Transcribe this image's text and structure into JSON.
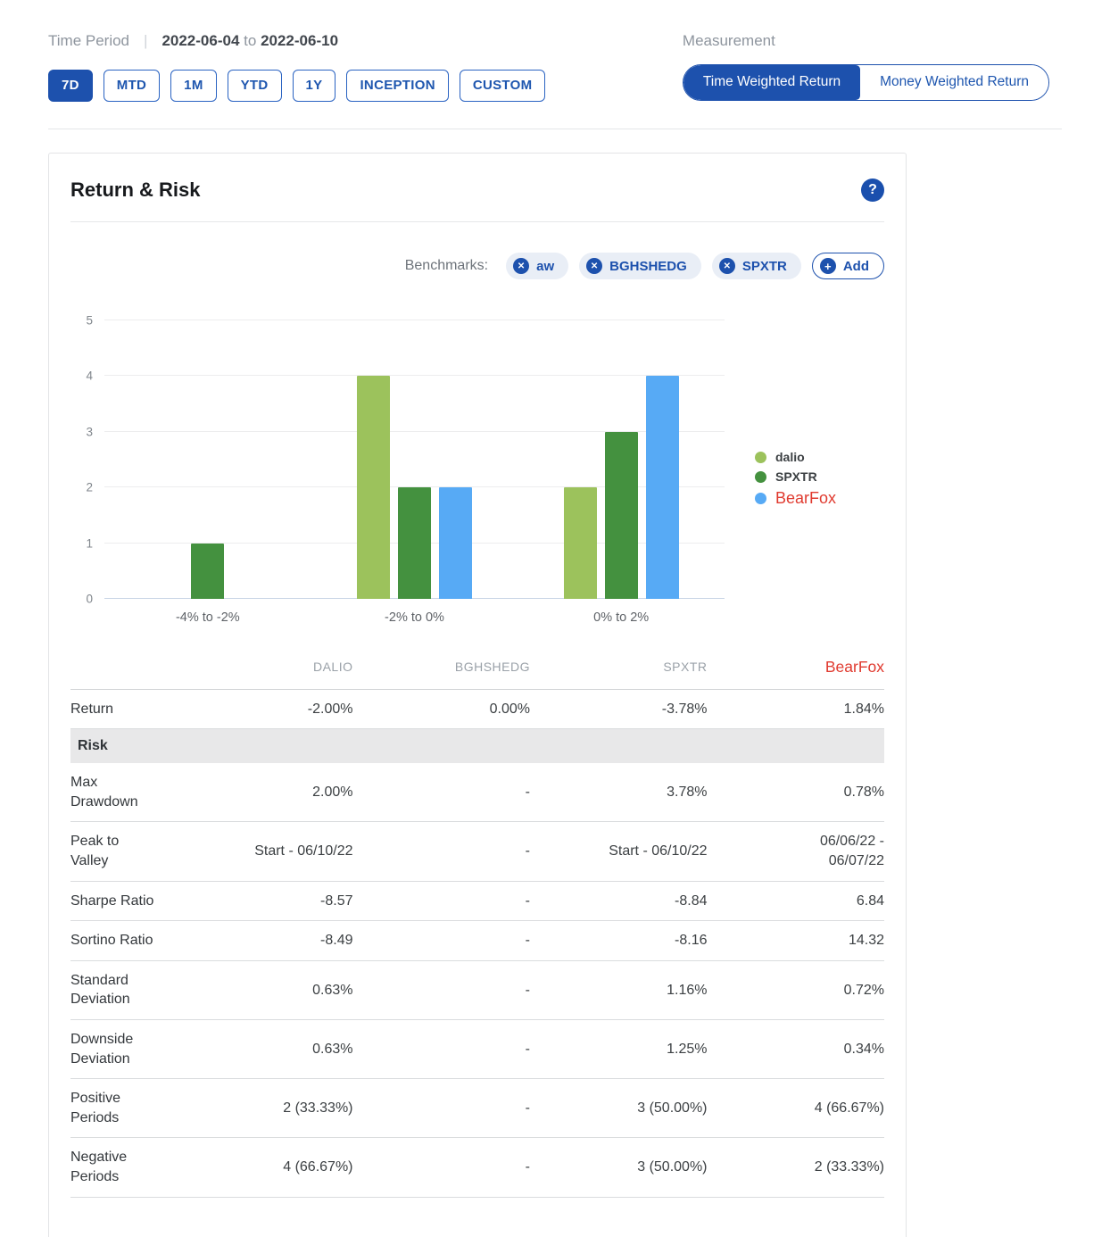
{
  "header": {
    "time_period_label": "Time Period",
    "date_start": "2022-06-04",
    "date_to": "to",
    "date_end": "2022-06-10",
    "period_buttons": [
      {
        "label": "7D",
        "active": true
      },
      {
        "label": "MTD",
        "active": false
      },
      {
        "label": "1M",
        "active": false
      },
      {
        "label": "YTD",
        "active": false
      },
      {
        "label": "1Y",
        "active": false
      },
      {
        "label": "INCEPTION",
        "active": false
      },
      {
        "label": "CUSTOM",
        "active": false
      }
    ],
    "measurement_label": "Measurement",
    "measurement_options": [
      {
        "label": "Time Weighted Return",
        "active": true
      },
      {
        "label": "Money Weighted Return",
        "active": false
      }
    ]
  },
  "card": {
    "title": "Return & Risk",
    "help_icon": "?",
    "benchmarks_label": "Benchmarks:",
    "benchmarks": [
      "aw",
      "BGHSHEDG",
      "SPXTR"
    ],
    "remove_icon": "✕",
    "add_icon": "+",
    "add_label": "Add"
  },
  "chart_data": {
    "type": "bar",
    "categories": [
      "-4% to -2%",
      "-2% to 0%",
      "0% to 2%"
    ],
    "series": [
      {
        "name": "dalio",
        "color": "#9cc25c",
        "values": [
          0,
          4,
          2
        ]
      },
      {
        "name": "SPXTR",
        "color": "#44913f",
        "values": [
          1,
          2,
          3
        ]
      },
      {
        "name": "BearFox",
        "color": "#57aaf5",
        "values": [
          0,
          2,
          4
        ],
        "accent": true,
        "name_color": "#e03a2f"
      }
    ],
    "ylim": [
      0,
      5
    ],
    "yticks": [
      0,
      1,
      2,
      3,
      4,
      5
    ],
    "grid": true,
    "legend_position": "right"
  },
  "table": {
    "columns": [
      {
        "label": "DALIO"
      },
      {
        "label": "BGHSHEDG"
      },
      {
        "label": "SPXTR"
      },
      {
        "label": "BearFox",
        "accent": true,
        "color": "#e03a2f"
      }
    ],
    "rows": [
      {
        "label": "Return",
        "values": [
          "-2.00%",
          "0.00%",
          "-3.78%",
          "1.84%"
        ]
      },
      {
        "section": "Risk"
      },
      {
        "label": "Max\nDrawdown",
        "values": [
          "2.00%",
          "-",
          "3.78%",
          "0.78%"
        ]
      },
      {
        "label": "Peak to\nValley",
        "values": [
          "Start - 06/10/22",
          "-",
          "Start - 06/10/22",
          "06/06/22 -\n06/07/22"
        ]
      },
      {
        "label": "Sharpe Ratio",
        "values": [
          "-8.57",
          "-",
          "-8.84",
          "6.84"
        ]
      },
      {
        "label": "Sortino Ratio",
        "values": [
          "-8.49",
          "-",
          "-8.16",
          "14.32"
        ]
      },
      {
        "label": "Standard\nDeviation",
        "values": [
          "0.63%",
          "-",
          "1.16%",
          "0.72%"
        ]
      },
      {
        "label": "Downside\nDeviation",
        "values": [
          "0.63%",
          "-",
          "1.25%",
          "0.34%"
        ]
      },
      {
        "label": "Positive\nPeriods",
        "values": [
          "2 (33.33%)",
          "-",
          "3 (50.00%)",
          "4 (66.67%)"
        ]
      },
      {
        "label": "Negative\nPeriods",
        "values": [
          "4 (66.67%)",
          "-",
          "3 (50.00%)",
          "2 (33.33%)"
        ]
      }
    ]
  }
}
